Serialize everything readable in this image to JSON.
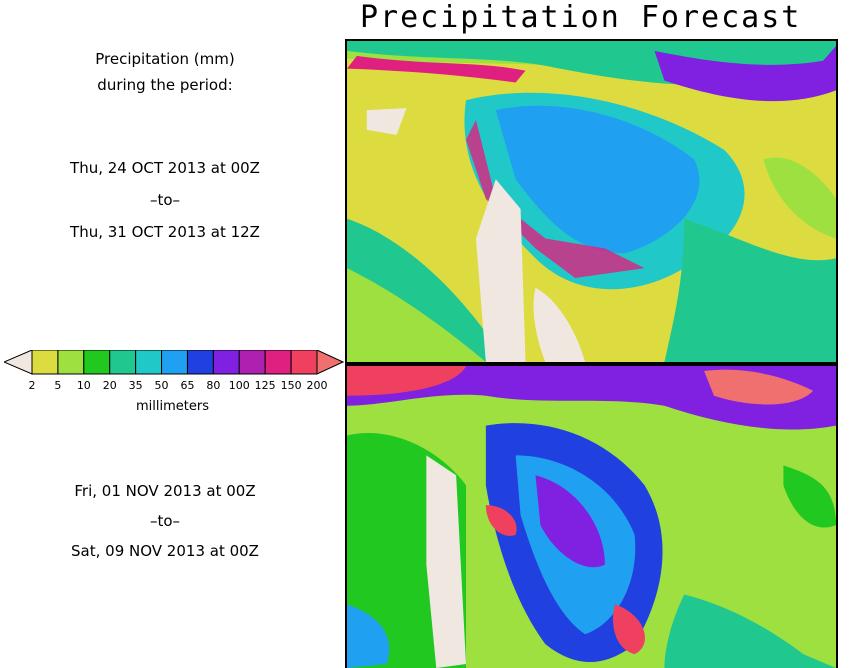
{
  "title": "Precipitation Forecast",
  "header": {
    "line1": "Precipitation (mm)",
    "line2": "during the period:"
  },
  "period1": {
    "start": "Thu, 24 OCT 2013 at 00Z",
    "to": "–to–",
    "end": "Thu, 31 OCT 2013 at 12Z"
  },
  "period2": {
    "start": "Fri, 01 NOV 2013 at 00Z",
    "to": "–to–",
    "end": "Sat, 09 NOV 2013 at 00Z"
  },
  "colorbar": {
    "ticks": [
      "2",
      "5",
      "10",
      "20",
      "35",
      "50",
      "65",
      "80",
      "100",
      "125",
      "150",
      "200"
    ],
    "colors": [
      "#dcdc40",
      "#9de040",
      "#20c820",
      "#20c890",
      "#20c8c8",
      "#20a0f0",
      "#2040e0",
      "#8020e0",
      "#b020b0",
      "#e02080",
      "#f04060",
      "#f07070"
    ],
    "unit_label": "millimeters"
  }
}
